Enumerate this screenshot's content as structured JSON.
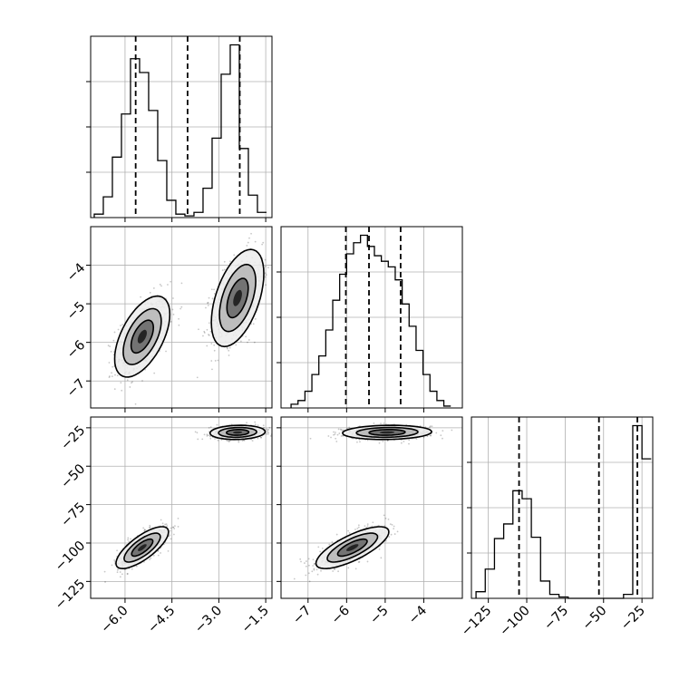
{
  "chart_data": {
    "type": "corner",
    "grid": true,
    "colors": {
      "line": "#000000",
      "grid": "#b0b0b0",
      "points": "#000000"
    },
    "params": [
      {
        "id": "p0",
        "range": [
          -7.1,
          -1.3
        ],
        "ticks": [
          -6.0,
          -4.5,
          -3.0,
          -1.5
        ],
        "tick_labels": [
          "−6.0",
          "−4.5",
          "−3.0",
          "−1.5"
        ]
      },
      {
        "id": "p1",
        "range": [
          -7.7,
          -3.0
        ],
        "ticks": [
          -7,
          -6,
          -5,
          -4
        ],
        "tick_labels": [
          "−7",
          "−6",
          "−5",
          "−4"
        ]
      },
      {
        "id": "p2",
        "range": [
          -136,
          -18
        ],
        "ticks": [
          -125,
          -100,
          -75,
          -50,
          -25
        ],
        "tick_labels": [
          "−125",
          "−100",
          "−75",
          "−50",
          "−25"
        ]
      }
    ],
    "histograms": [
      {
        "param": "p0",
        "bins": [
          -6.84,
          -6.55,
          -6.26,
          -5.97,
          -5.68,
          -5.39,
          -5.1,
          -4.81,
          -4.52,
          -4.23,
          -3.94,
          -3.65,
          -3.36,
          -3.07,
          -2.78,
          -2.49,
          -2.2,
          -1.91,
          -1.62
        ],
        "heights": [
          0.2,
          1.2,
          3.5,
          6.0,
          9.2,
          8.4,
          6.2,
          3.3,
          1.0,
          0.2,
          0.1,
          0.3,
          1.7,
          4.6,
          8.3,
          10.0,
          4.0,
          1.3,
          0.3
        ],
        "quantiles": [
          -5.66,
          -4.0,
          -2.33
        ]
      },
      {
        "param": "p1",
        "bins": [
          -7.35,
          -7.17,
          -6.99,
          -6.81,
          -6.63,
          -6.45,
          -6.27,
          -6.09,
          -5.91,
          -5.73,
          -5.55,
          -5.37,
          -5.19,
          -5.01,
          -4.83,
          -4.65,
          -4.47,
          -4.29,
          -4.11,
          -3.93,
          -3.75,
          -3.57,
          -3.39
        ],
        "heights": [
          0.2,
          0.4,
          0.9,
          1.8,
          2.8,
          4.2,
          5.8,
          7.2,
          8.3,
          8.9,
          9.3,
          8.7,
          8.2,
          7.9,
          7.6,
          6.9,
          5.6,
          4.4,
          3.1,
          1.8,
          0.9,
          0.4,
          0.1
        ],
        "quantiles": [
          -6.02,
          -5.42,
          -4.6
        ]
      },
      {
        "param": "p2",
        "bins": [
          -130,
          -124,
          -118,
          -112,
          -106,
          -100,
          -94,
          -88,
          -82,
          -76,
          -70,
          -64,
          -58,
          -52,
          -46,
          -40,
          -34,
          -28,
          -22
        ],
        "heights": [
          0.5,
          2.2,
          4.5,
          5.6,
          8.1,
          7.5,
          4.6,
          1.3,
          0.3,
          0.1,
          0,
          0,
          0,
          0,
          0,
          0,
          0.3,
          13.0,
          10.5
        ],
        "quantiles": [
          -105,
          -53,
          -28
        ]
      }
    ],
    "clusters": [
      {
        "x_param": "p0",
        "y_param": "p1",
        "cx": -5.45,
        "cy": -5.85,
        "sx": 0.42,
        "sy": 0.5,
        "rho": 0.55
      },
      {
        "x_param": "p0",
        "y_param": "p1",
        "cx": -2.4,
        "cy": -4.85,
        "sx": 0.4,
        "sy": 0.6,
        "rho": 0.5
      },
      {
        "x_param": "p0",
        "y_param": "p2",
        "cx": -5.45,
        "cy": -103,
        "sx": 0.4,
        "sy": 6.5,
        "rho": 0.75
      },
      {
        "x_param": "p0",
        "y_param": "p2",
        "cx": -2.4,
        "cy": -28,
        "sx": 0.42,
        "sy": 2.2,
        "rho": 0.1
      },
      {
        "x_param": "p1",
        "y_param": "p2",
        "cx": -5.85,
        "cy": -103,
        "sx": 0.45,
        "sy": 6.5,
        "rho": 0.75
      },
      {
        "x_param": "p1",
        "y_param": "p2",
        "cx": -4.95,
        "cy": -28,
        "sx": 0.55,
        "sy": 2.2,
        "rho": 0.1
      }
    ]
  }
}
